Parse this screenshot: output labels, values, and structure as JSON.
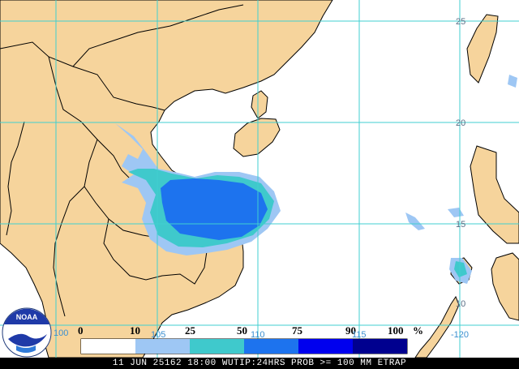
{
  "map": {
    "lat_labels": [
      "25",
      "20",
      "15",
      "10"
    ],
    "lon_labels": [
      "100",
      "105",
      "110",
      "115",
      "-120"
    ],
    "logo_text": "NOAA"
  },
  "legend": {
    "labels": [
      "0",
      "10",
      "25",
      "50",
      "75",
      "90",
      "100",
      "%"
    ],
    "colors": [
      "#ffffff",
      "#9ec7f4",
      "#3fc9cc",
      "#1d73ee",
      "#0000ee",
      "#00008f"
    ]
  },
  "footer": {
    "text": "11 JUN 25162 18:00 WUTIP:24HRS PROB >= 100 MM ETRAP"
  },
  "colors": {
    "land": "#f6d49c",
    "ocean": "#ffffff",
    "grid": "#40cfd0",
    "border": "#000000"
  }
}
